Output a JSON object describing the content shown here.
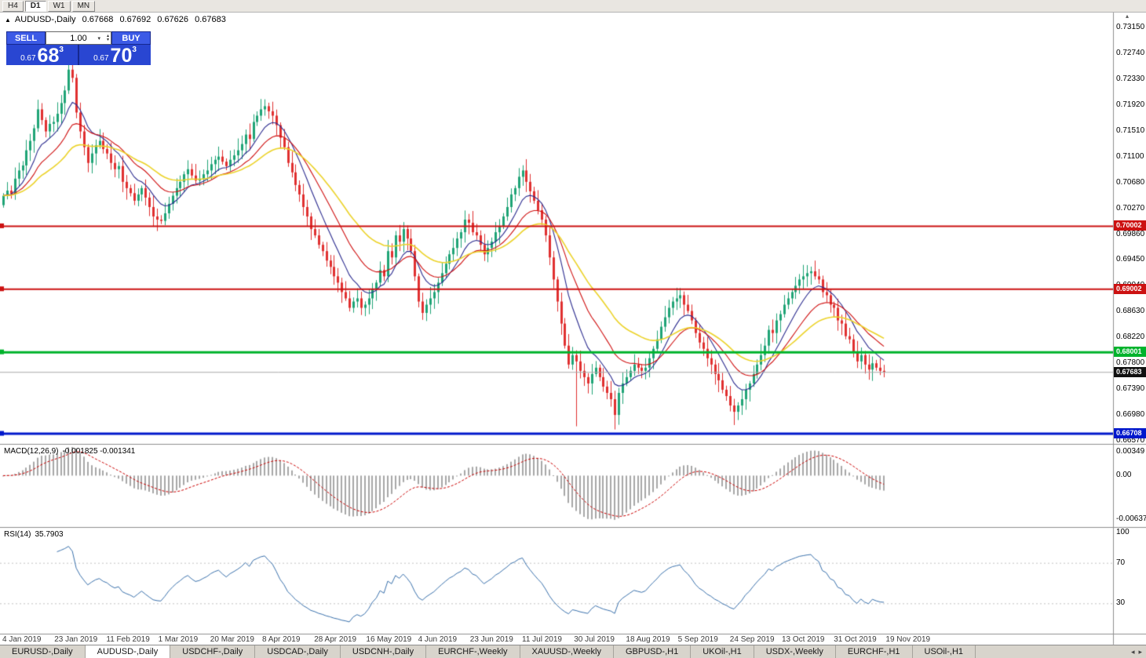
{
  "toolbar": {
    "timeframes": [
      "H4",
      "D1",
      "W1",
      "MN"
    ],
    "active_timeframe": "D1"
  },
  "header": {
    "symbol": "AUDUSD-,Daily",
    "open": "0.67668",
    "high": "0.67692",
    "low": "0.67626",
    "close": "0.67683"
  },
  "trade_widget": {
    "sell_label": "SELL",
    "buy_label": "BUY",
    "volume": "1.00",
    "sell_price_prefix": "0.67",
    "sell_price_big": "68",
    "sell_price_sup": "3",
    "buy_price_prefix": "0.67",
    "buy_price_big": "70",
    "buy_price_sup": "3"
  },
  "price_axis": [
    "0.73150",
    "0.72740",
    "0.72330",
    "0.71920",
    "0.71510",
    "0.71100",
    "0.70680",
    "0.70270",
    "0.69860",
    "0.69450",
    "0.69040",
    "0.68630",
    "0.68220",
    "0.67800",
    "0.67390",
    "0.66980",
    "0.66570"
  ],
  "current_price": "0.67683",
  "levels": [
    {
      "price": 0.70002,
      "label": "0.70002",
      "color": "#cc1111",
      "width": 2
    },
    {
      "price": 0.69002,
      "label": "0.69002",
      "color": "#cc1111",
      "width": 2
    },
    {
      "price": 0.68001,
      "label": "0.68001",
      "color": "#00b32c",
      "width": 3
    },
    {
      "price": 0.66708,
      "label": "0.66708",
      "color": "#0018cc",
      "width": 3
    }
  ],
  "macd": {
    "label": "MACD(12,26,9)",
    "values": "-0.001825 -0.001341",
    "axis": [
      "0.00349",
      "0.00",
      "-0.00637"
    ]
  },
  "rsi": {
    "label": "RSI(14)",
    "value": "35.7903",
    "axis": [
      "100",
      "70",
      "30"
    ]
  },
  "date_axis": [
    "4 Jan 2019",
    "23 Jan 2019",
    "11 Feb 2019",
    "1 Mar 2019",
    "20 Mar 2019",
    "8 Apr 2019",
    "28 Apr 2019",
    "16 May 2019",
    "4 Jun 2019",
    "23 Jun 2019",
    "11 Jul 2019",
    "30 Jul 2019",
    "18 Aug 2019",
    "5 Sep 2019",
    "24 Sep 2019",
    "13 Oct 2019",
    "31 Oct 2019",
    "19 Nov 2019"
  ],
  "tabs": [
    "EURUSD-,Daily",
    "AUDUSD-,Daily",
    "USDCHF-,Daily",
    "USDCAD-,Daily",
    "USDCNH-,Daily",
    "EURCHF-,Weekly",
    "XAUUSD-,Weekly",
    "GBPUSD-,H1",
    "UKOil-,H1",
    "USDX-,Weekly",
    "EURCHF-,H1",
    "USOil-,H1"
  ],
  "active_tab": "AUDUSD-,Daily",
  "chart_data": {
    "type": "candlestick",
    "title": "AUDUSD-,Daily",
    "timeframe": "D1",
    "x_range": [
      "4 Jan 2019",
      "22 Nov 2019"
    ],
    "y_range": [
      0.6657,
      0.7315
    ],
    "up_color": "#1fa476",
    "down_color": "#e03030",
    "closes": [
      0.7048,
      0.7056,
      0.7051,
      0.7075,
      0.7088,
      0.7096,
      0.712,
      0.7135,
      0.7155,
      0.7185,
      0.7168,
      0.715,
      0.7162,
      0.7165,
      0.7178,
      0.7195,
      0.7215,
      0.7248,
      0.7235,
      0.718,
      0.715,
      0.7125,
      0.71,
      0.7115,
      0.7128,
      0.7135,
      0.7122,
      0.7115,
      0.71,
      0.709,
      0.7095,
      0.707,
      0.706,
      0.7052,
      0.704,
      0.705,
      0.706,
      0.7045,
      0.703,
      0.7015,
      0.701,
      0.7008,
      0.702,
      0.7035,
      0.7048,
      0.706,
      0.707,
      0.7082,
      0.709,
      0.708,
      0.7072,
      0.7075,
      0.7082,
      0.7088,
      0.7098,
      0.7105,
      0.711,
      0.7102,
      0.7095,
      0.7105,
      0.7112,
      0.712,
      0.713,
      0.7145,
      0.7138,
      0.7165,
      0.7175,
      0.7185,
      0.719,
      0.7182,
      0.7175,
      0.716,
      0.714,
      0.7125,
      0.71,
      0.7085,
      0.7065,
      0.705,
      0.703,
      0.7015,
      0.6995,
      0.6985,
      0.697,
      0.696,
      0.6945,
      0.6935,
      0.692,
      0.691,
      0.6895,
      0.6885,
      0.687,
      0.688,
      0.6885,
      0.687,
      0.6875,
      0.6885,
      0.69,
      0.691,
      0.693,
      0.692,
      0.696,
      0.695,
      0.6985,
      0.6975,
      0.6995,
      0.698,
      0.696,
      0.692,
      0.688,
      0.6862,
      0.6875,
      0.6885,
      0.6895,
      0.691,
      0.6925,
      0.694,
      0.6955,
      0.6965,
      0.698,
      0.699,
      0.701,
      0.7005,
      0.699,
      0.6985,
      0.697,
      0.6955,
      0.6965,
      0.6975,
      0.699,
      0.7,
      0.7015,
      0.703,
      0.705,
      0.706,
      0.7078,
      0.7088,
      0.707,
      0.7055,
      0.704,
      0.7025,
      0.701,
      0.6985,
      0.695,
      0.6915,
      0.688,
      0.6845,
      0.681,
      0.678,
      0.6795,
      0.6785,
      0.677,
      0.676,
      0.675,
      0.6765,
      0.6775,
      0.676,
      0.6745,
      0.6735,
      0.6725,
      0.67,
      0.6735,
      0.675,
      0.676,
      0.677,
      0.678,
      0.6775,
      0.677,
      0.6775,
      0.679,
      0.6805,
      0.682,
      0.684,
      0.6855,
      0.687,
      0.688,
      0.6885,
      0.689,
      0.6875,
      0.6865,
      0.685,
      0.683,
      0.6815,
      0.6805,
      0.679,
      0.678,
      0.6765,
      0.6755,
      0.674,
      0.673,
      0.6715,
      0.6705,
      0.6715,
      0.6725,
      0.674,
      0.675,
      0.6765,
      0.678,
      0.6795,
      0.681,
      0.6835,
      0.683,
      0.685,
      0.686,
      0.6875,
      0.6885,
      0.6895,
      0.6905,
      0.6915,
      0.692,
      0.6925,
      0.6928,
      0.692,
      0.6915,
      0.6895,
      0.689,
      0.6875,
      0.687,
      0.685,
      0.6845,
      0.6825,
      0.682,
      0.68,
      0.6785,
      0.6795,
      0.678,
      0.6772,
      0.6782,
      0.6775,
      0.677,
      0.67683
    ],
    "special_wick_lows": [
      {
        "index": 149,
        "low": 0.6682
      },
      {
        "index": 159,
        "low": 0.6677
      },
      {
        "index": 190,
        "low": 0.6684
      }
    ],
    "special_wick_highs": [
      {
        "index": 17,
        "high": 0.7282
      }
    ],
    "overlays": [
      {
        "name": "ma-fast-blue",
        "color": "#2b2b8f",
        "period": 9
      },
      {
        "name": "ma-mid-red",
        "color": "#d01010",
        "period": 18
      },
      {
        "name": "ma-slow-yellow",
        "color": "#ecd32a",
        "period": 34
      }
    ],
    "indicators": [
      {
        "name": "MACD",
        "params": "12,26,9",
        "current_macd": -0.001825,
        "current_signal": -0.001341,
        "axis_max": 0.00349,
        "axis_min": -0.00637
      },
      {
        "name": "RSI",
        "params": "14",
        "current": 35.7903,
        "levels": [
          70,
          30
        ]
      }
    ]
  }
}
